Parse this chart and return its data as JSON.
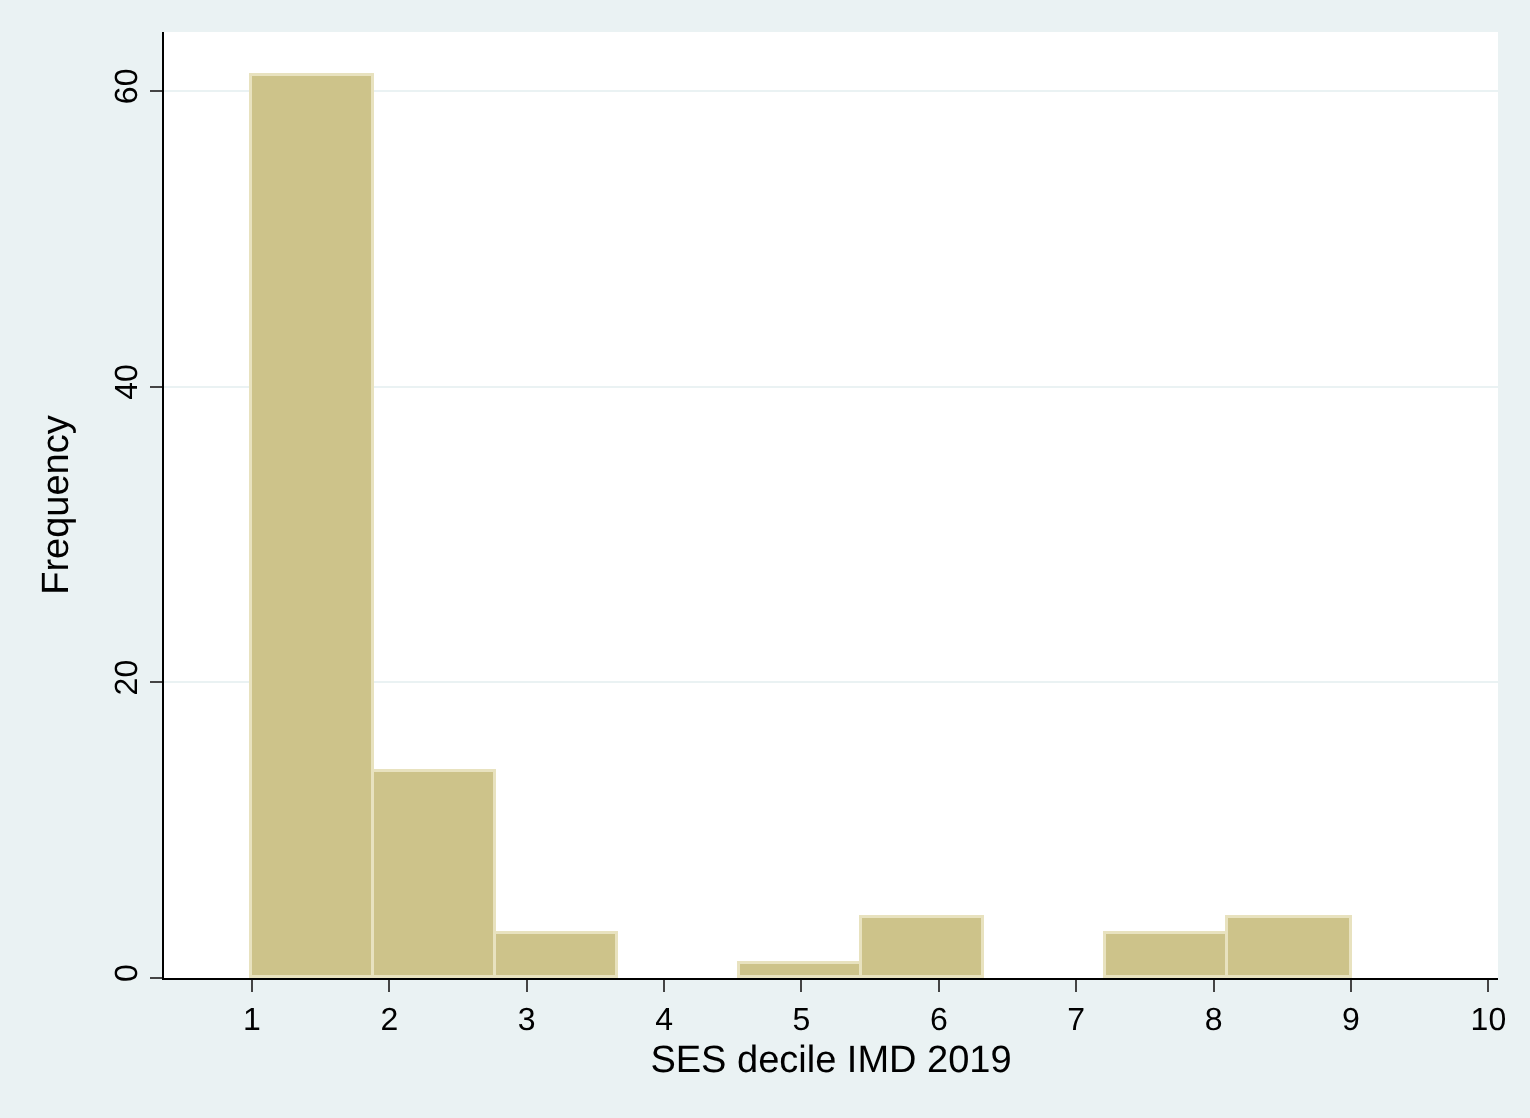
{
  "chart_data": {
    "type": "histogram",
    "xlabel": "SES decile IMD 2019",
    "ylabel": "Frequency",
    "bins": [
      1,
      1.889,
      2.778,
      3.667,
      4.556,
      5.444,
      6.333,
      7.222,
      8.111,
      9
    ],
    "values": [
      61,
      14,
      3,
      0,
      1,
      4,
      0,
      3,
      4
    ],
    "color": "#cdc38a",
    "xlim": [
      0.36,
      10.07
    ],
    "xticks": [
      1,
      2,
      3,
      4,
      5,
      6,
      7,
      8,
      9,
      10
    ],
    "ylim": [
      0,
      64
    ],
    "yticks": [
      0,
      20,
      40,
      60
    ],
    "grid": "y"
  }
}
